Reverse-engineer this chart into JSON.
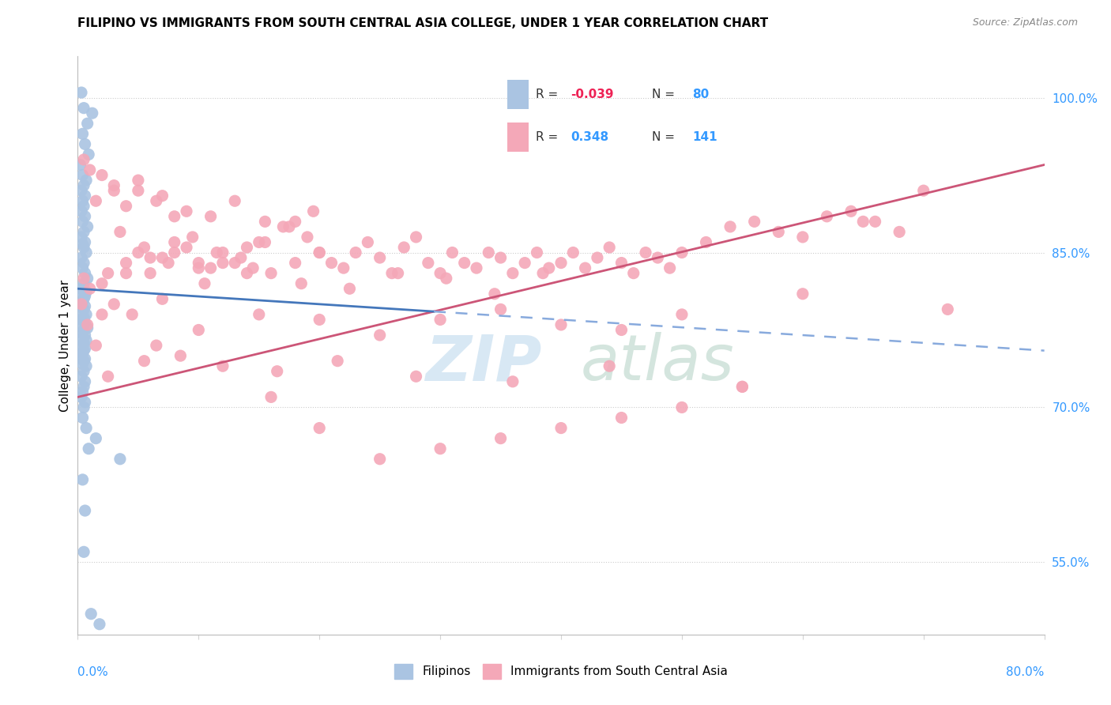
{
  "title": "FILIPINO VS IMMIGRANTS FROM SOUTH CENTRAL ASIA COLLEGE, UNDER 1 YEAR CORRELATION CHART",
  "source": "Source: ZipAtlas.com",
  "ylabel": "College, Under 1 year",
  "right_yticks": [
    55.0,
    70.0,
    85.0,
    100.0
  ],
  "r_filipino": -0.039,
  "n_filipino": 80,
  "r_immigrants": 0.348,
  "n_immigrants": 141,
  "color_filipino": "#aac4e2",
  "color_immigrant": "#f4a8b8",
  "trendline_filipino_solid_color": "#4477bb",
  "trendline_filipino_dash_color": "#88aadd",
  "trendline_immigrant_color": "#cc5577",
  "xlim": [
    0.0,
    80.0
  ],
  "ylim": [
    48.0,
    104.0
  ],
  "legend_r1": "R = -0.039",
  "legend_n1": "N = 80",
  "legend_r2": "R =  0.348",
  "legend_n2": "N = 141",
  "filipino_x": [
    0.3,
    0.5,
    1.2,
    0.8,
    0.4,
    0.6,
    0.9,
    0.2,
    0.4,
    0.7,
    0.5,
    0.3,
    0.6,
    0.4,
    0.5,
    0.3,
    0.6,
    0.4,
    0.8,
    0.5,
    0.3,
    0.6,
    0.4,
    0.5,
    0.7,
    0.3,
    0.5,
    0.4,
    0.6,
    0.8,
    0.5,
    0.3,
    0.7,
    0.4,
    0.6,
    0.5,
    0.4,
    0.3,
    0.6,
    0.5,
    0.4,
    0.7,
    0.5,
    0.3,
    0.6,
    0.4,
    0.8,
    0.5,
    0.3,
    0.6,
    0.4,
    0.7,
    0.5,
    0.3,
    0.6,
    0.5,
    0.4,
    0.3,
    0.6,
    0.5,
    0.4,
    0.7,
    0.5,
    0.3,
    0.6,
    0.5,
    0.4,
    0.3,
    0.6,
    0.5,
    0.4,
    0.7,
    1.5,
    0.9,
    3.5,
    0.4,
    0.6,
    0.5,
    1.1,
    1.8
  ],
  "filipino_y": [
    100.5,
    99.0,
    98.5,
    97.5,
    96.5,
    95.5,
    94.5,
    93.5,
    92.5,
    92.0,
    91.5,
    91.0,
    90.5,
    90.0,
    89.5,
    89.0,
    88.5,
    88.0,
    87.5,
    87.0,
    86.5,
    86.0,
    85.8,
    85.5,
    85.0,
    84.5,
    84.0,
    83.5,
    83.0,
    82.5,
    82.0,
    81.5,
    81.2,
    81.0,
    80.8,
    80.5,
    80.2,
    80.0,
    79.8,
    79.5,
    79.2,
    79.0,
    78.7,
    78.5,
    78.2,
    78.0,
    77.7,
    77.5,
    77.2,
    77.0,
    76.7,
    76.5,
    76.2,
    76.0,
    75.7,
    75.5,
    75.2,
    75.0,
    74.7,
    74.5,
    74.2,
    74.0,
    73.5,
    73.0,
    72.5,
    72.0,
    71.5,
    71.0,
    70.5,
    70.0,
    69.0,
    68.0,
    67.0,
    66.0,
    65.0,
    63.0,
    60.0,
    56.0,
    50.0,
    49.0
  ],
  "immigrant_x": [
    0.3,
    0.5,
    0.8,
    1.5,
    2.0,
    3.0,
    1.0,
    2.5,
    4.0,
    5.0,
    6.0,
    7.0,
    8.0,
    9.0,
    10.0,
    11.0,
    12.0,
    13.0,
    14.0,
    15.0,
    3.5,
    5.5,
    7.5,
    9.5,
    11.5,
    13.5,
    15.5,
    17.0,
    18.0,
    19.0,
    20.0,
    21.0,
    22.0,
    23.0,
    24.0,
    25.0,
    26.0,
    27.0,
    28.0,
    29.0,
    30.0,
    31.0,
    32.0,
    33.0,
    34.0,
    35.0,
    36.0,
    37.0,
    38.0,
    39.0,
    40.0,
    41.0,
    42.0,
    43.0,
    44.0,
    45.0,
    46.0,
    47.0,
    48.0,
    49.0,
    50.0,
    52.0,
    54.0,
    56.0,
    58.0,
    60.0,
    62.0,
    64.0,
    66.0,
    68.0,
    2.0,
    4.0,
    6.0,
    8.0,
    10.0,
    12.0,
    14.0,
    16.0,
    18.0,
    20.0,
    4.5,
    7.0,
    10.5,
    14.5,
    18.5,
    22.5,
    26.5,
    30.5,
    34.5,
    38.5,
    1.5,
    3.0,
    5.0,
    7.0,
    9.0,
    11.0,
    13.0,
    15.5,
    17.5,
    19.5,
    6.5,
    10.0,
    15.0,
    20.0,
    25.0,
    30.0,
    35.0,
    40.0,
    45.0,
    50.0,
    2.5,
    5.5,
    8.5,
    12.0,
    16.5,
    21.5,
    28.0,
    36.0,
    44.0,
    55.0,
    0.5,
    1.0,
    2.0,
    3.0,
    4.0,
    5.0,
    6.5,
    8.0,
    72.0,
    60.0,
    70.0,
    65.0,
    55.0,
    50.0,
    45.0,
    40.0,
    35.0,
    30.0,
    25.0,
    20.0,
    16.0
  ],
  "immigrant_y": [
    80.0,
    82.5,
    78.0,
    76.0,
    79.0,
    80.0,
    81.5,
    83.0,
    84.0,
    85.0,
    83.0,
    84.5,
    86.0,
    85.5,
    84.0,
    83.5,
    85.0,
    84.0,
    83.0,
    86.0,
    87.0,
    85.5,
    84.0,
    86.5,
    85.0,
    84.5,
    86.0,
    87.5,
    88.0,
    86.5,
    85.0,
    84.0,
    83.5,
    85.0,
    86.0,
    84.5,
    83.0,
    85.5,
    86.5,
    84.0,
    83.0,
    85.0,
    84.0,
    83.5,
    85.0,
    84.5,
    83.0,
    84.0,
    85.0,
    83.5,
    84.0,
    85.0,
    83.5,
    84.5,
    85.5,
    84.0,
    83.0,
    85.0,
    84.5,
    83.5,
    85.0,
    86.0,
    87.5,
    88.0,
    87.0,
    86.5,
    88.5,
    89.0,
    88.0,
    87.0,
    82.0,
    83.0,
    84.5,
    85.0,
    83.5,
    84.0,
    85.5,
    83.0,
    84.0,
    85.0,
    79.0,
    80.5,
    82.0,
    83.5,
    82.0,
    81.5,
    83.0,
    82.5,
    81.0,
    83.0,
    90.0,
    91.5,
    92.0,
    90.5,
    89.0,
    88.5,
    90.0,
    88.0,
    87.5,
    89.0,
    76.0,
    77.5,
    79.0,
    78.5,
    77.0,
    78.5,
    79.5,
    78.0,
    77.5,
    79.0,
    73.0,
    74.5,
    75.0,
    74.0,
    73.5,
    74.5,
    73.0,
    72.5,
    74.0,
    72.0,
    94.0,
    93.0,
    92.5,
    91.0,
    89.5,
    91.0,
    90.0,
    88.5,
    79.5,
    81.0,
    91.0,
    88.0,
    72.0,
    70.0,
    69.0,
    68.0,
    67.0,
    66.0,
    65.0,
    68.0,
    71.0
  ]
}
